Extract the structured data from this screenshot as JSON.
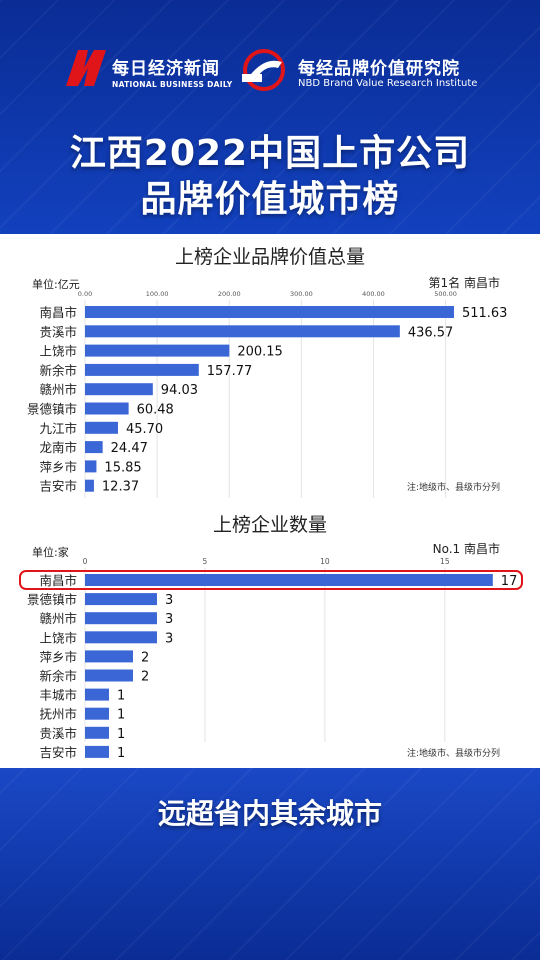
{
  "header": {
    "logo1_cn": "每日经济新闻",
    "logo1_en": "NATIONAL BUSINESS DAILY",
    "logo2_cn": "每经品牌价值研究院",
    "logo2_en": "NBD Brand Value Research Institute",
    "title_line1": "江西2022中国上市公司",
    "title_line2": "品牌价值城市榜"
  },
  "colors": {
    "bar": "#3a66d6",
    "highlight": "#e0151a",
    "brand_red": "#e0151a"
  },
  "chart_data": [
    {
      "type": "bar",
      "orientation": "horizontal",
      "title": "上榜企业品牌价值总量",
      "unit_label": "单位:亿元",
      "top_label": "第1名 南昌市",
      "note": "注:地级市、县级市分列",
      "categories": [
        "南昌市",
        "贵溪市",
        "上饶市",
        "新余市",
        "赣州市",
        "景德镇市",
        "九江市",
        "龙南市",
        "萍乡市",
        "吉安市"
      ],
      "values": [
        511.63,
        436.57,
        200.15,
        157.77,
        94.03,
        60.48,
        45.7,
        24.47,
        15.85,
        12.37
      ],
      "value_labels": [
        "511.63",
        "436.57",
        "200.15",
        "157.77",
        "94.03",
        "60.48",
        "45.70",
        "24.47",
        "15.85",
        "12.37"
      ],
      "xlim": [
        0,
        520
      ],
      "ticks": [
        0,
        100,
        200,
        300,
        400,
        500
      ],
      "tick_labels": [
        "0.00",
        "100.00",
        "200.00",
        "300.00",
        "400.00",
        "500.00"
      ],
      "grid": true
    },
    {
      "type": "bar",
      "orientation": "horizontal",
      "title": "上榜企业数量",
      "unit_label": "单位:家",
      "top_label": "No.1 南昌市",
      "note": "注:地级市、县级市分列",
      "categories": [
        "南昌市",
        "景德镇市",
        "赣州市",
        "上饶市",
        "萍乡市",
        "新余市",
        "丰城市",
        "抚州市",
        "贵溪市",
        "吉安市"
      ],
      "values": [
        17,
        3,
        3,
        3,
        2,
        2,
        1,
        1,
        1,
        1
      ],
      "value_labels": [
        "17",
        "3",
        "3",
        "3",
        "2",
        "2",
        "1",
        "1",
        "1",
        "1"
      ],
      "xlim": [
        0,
        17.3
      ],
      "ticks": [
        0,
        5,
        10,
        15
      ],
      "tick_labels": [
        "0",
        "5",
        "10",
        "15"
      ],
      "grid": true,
      "highlight_index": 0
    }
  ],
  "footer": {
    "caption": "远超省内其余城市"
  }
}
